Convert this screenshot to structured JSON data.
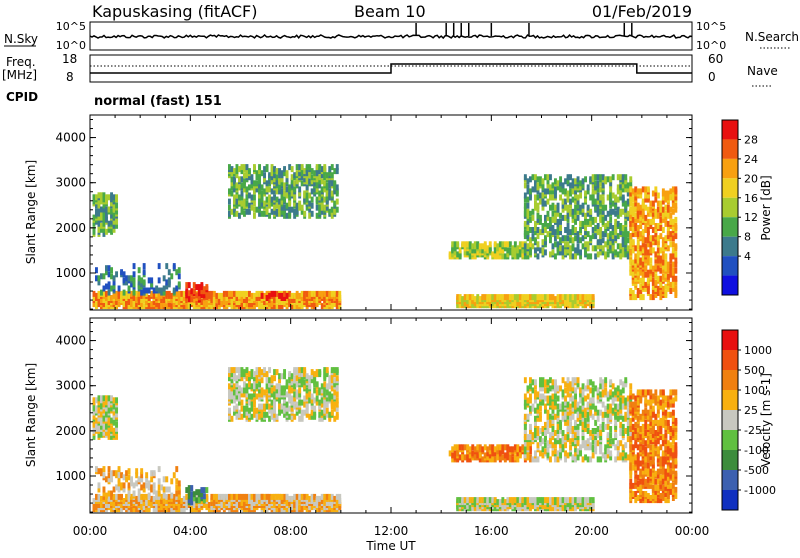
{
  "header": {
    "station": "Kapuskasing (fitACF)",
    "beam": "Beam 10",
    "date": "01/Feb/2019"
  },
  "top_panels": {
    "nsky_label": "N.Sky",
    "nsky_ticks": [
      "10^5",
      "10^0"
    ],
    "nsearch_label": "N.Search",
    "nsearch_ticks": [
      "10^5",
      "10^0"
    ],
    "freq_label": "Freq.",
    "freq_unit": "[MHz]",
    "freq_ticks": [
      "18",
      "8"
    ],
    "nave_label": "Nave",
    "nave_ticks": [
      "60",
      "0"
    ],
    "cpid_label": "CPID",
    "cpid_value": "normal (fast) 151"
  },
  "chart_data": [
    {
      "type": "heatmap",
      "name": "power",
      "ylabel": "Slant Range [km]",
      "ylim": [
        180,
        4500
      ],
      "yticks": [
        "4000",
        "3000",
        "2000",
        "1000"
      ],
      "ytick_values": [
        4000,
        3000,
        2000,
        1000
      ],
      "xlim_hours": [
        0,
        24
      ],
      "colorbar_label": "Power [dB]",
      "colorbar_ticks": [
        "28",
        "24",
        "20",
        "16",
        "12",
        "8",
        "4"
      ],
      "colorbar_colors": [
        "#1010e0",
        "#2050c0",
        "#3c7a8c",
        "#48a848",
        "#a8cc30",
        "#f0d020",
        "#f8a010",
        "#f05a10",
        "#e81010"
      ],
      "regions": [
        {
          "t": [
            0.1,
            9.9
          ],
          "r": [
            200,
            480
          ],
          "level": 6,
          "density": 0.8
        },
        {
          "t": [
            14.6,
            20.1
          ],
          "r": [
            220,
            420
          ],
          "level": 5,
          "density": 0.95
        },
        {
          "t": [
            0.1,
            1.0
          ],
          "r": [
            1800,
            2700
          ],
          "level": 3,
          "density": 0.6
        },
        {
          "t": [
            5.5,
            9.8
          ],
          "r": [
            2200,
            3300
          ],
          "level": 3,
          "density": 0.45
        },
        {
          "t": [
            14.3,
            17.6
          ],
          "r": [
            1300,
            1600
          ],
          "level": 4,
          "density": 0.6
        },
        {
          "t": [
            17.3,
            21.6
          ],
          "r": [
            1300,
            3100
          ],
          "level": 3,
          "density": 0.35
        },
        {
          "t": [
            21.5,
            23.4
          ],
          "r": [
            400,
            2800
          ],
          "level": 6,
          "density": 0.45
        },
        {
          "t": [
            0.2,
            3.6
          ],
          "r": [
            500,
            1100
          ],
          "level": 2,
          "density": 0.2
        },
        {
          "t": [
            3.8,
            4.6
          ],
          "r": [
            350,
            700
          ],
          "level": 8,
          "density": 0.45
        },
        {
          "t": [
            6.8,
            7.8
          ],
          "r": [
            380,
            500
          ],
          "level": 8,
          "density": 0.5
        }
      ]
    },
    {
      "type": "heatmap",
      "name": "velocity",
      "ylabel": "Slant Range [km]",
      "ylim": [
        180,
        4500
      ],
      "yticks": [
        "4000",
        "3000",
        "2000",
        "1000"
      ],
      "ytick_values": [
        4000,
        3000,
        2000,
        1000
      ],
      "xlim_hours": [
        0,
        24
      ],
      "xticks": [
        "00:00",
        "04:00",
        "08:00",
        "12:00",
        "16:00",
        "20:00",
        "00:00"
      ],
      "xlabel": "Time UT",
      "colorbar_label": "Velocity [m s-1]",
      "colorbar_ticks": [
        "1000",
        "500",
        "100",
        "25",
        "-25",
        "-100",
        "-500",
        "-1000"
      ],
      "colorbar_colors": [
        "#1030c0",
        "#3c60b0",
        "#3c8c3c",
        "#60c040",
        "#c8c8c0",
        "#f8b010",
        "#f08010",
        "#f05010",
        "#e81010"
      ],
      "regions": [
        {
          "t": [
            0.1,
            9.9
          ],
          "r": [
            200,
            480
          ],
          "level": 5,
          "density": 0.8
        },
        {
          "t": [
            14.6,
            20.1
          ],
          "r": [
            220,
            420
          ],
          "level": 4,
          "density": 0.95
        },
        {
          "t": [
            0.1,
            1.0
          ],
          "r": [
            1800,
            2700
          ],
          "level": 4,
          "density": 0.6
        },
        {
          "t": [
            5.5,
            9.8
          ],
          "r": [
            2200,
            3300
          ],
          "level": 4,
          "density": 0.45
        },
        {
          "t": [
            14.3,
            17.6
          ],
          "r": [
            1300,
            1600
          ],
          "level": 6,
          "density": 0.6
        },
        {
          "t": [
            17.3,
            21.6
          ],
          "r": [
            1300,
            3100
          ],
          "level": 4,
          "density": 0.35
        },
        {
          "t": [
            21.5,
            23.4
          ],
          "r": [
            400,
            2800
          ],
          "level": 6,
          "density": 0.45
        },
        {
          "t": [
            0.2,
            3.6
          ],
          "r": [
            500,
            1100
          ],
          "level": 5,
          "density": 0.2
        },
        {
          "t": [
            3.8,
            4.6
          ],
          "r": [
            350,
            700
          ],
          "level": 2,
          "density": 0.4
        },
        {
          "t": [
            6.8,
            7.8
          ],
          "r": [
            380,
            500
          ],
          "level": 5,
          "density": 0.5
        }
      ]
    }
  ]
}
